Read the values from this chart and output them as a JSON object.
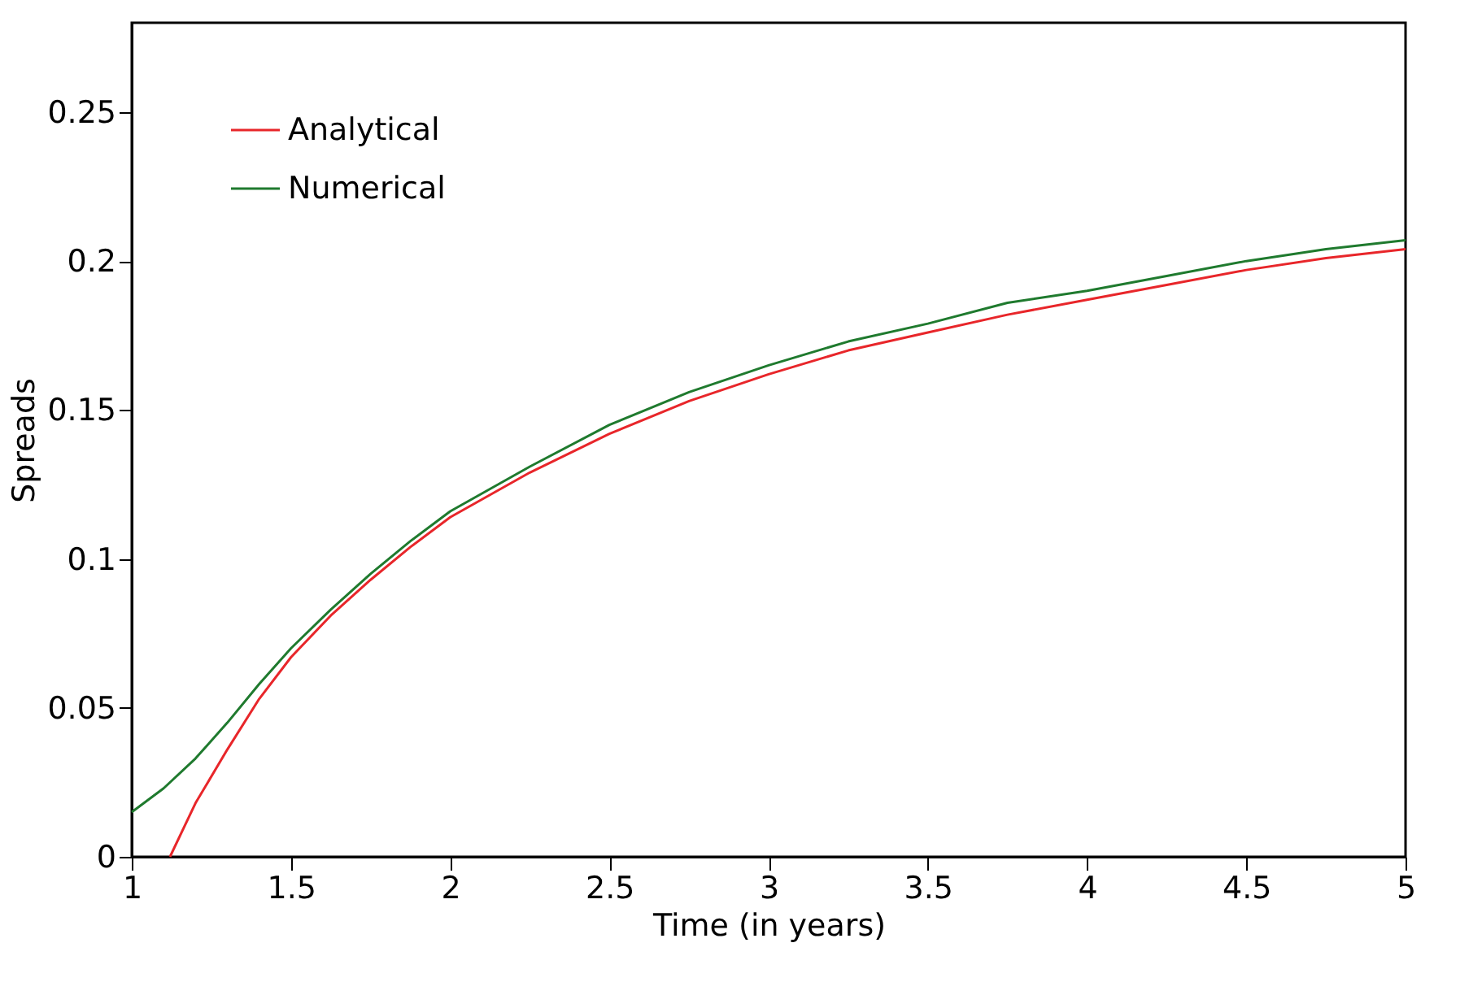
{
  "chart_data": {
    "type": "line",
    "xlabel": "Time (in years)",
    "ylabel": "Spreads",
    "xlim": [
      1,
      5
    ],
    "xticks": [
      1,
      1.5,
      2,
      2.5,
      3,
      3.5,
      4,
      4.5,
      5
    ],
    "ylim": [
      0,
      0.28
    ],
    "yticks": [
      0,
      0.05,
      0.1,
      0.15,
      0.2,
      0.25
    ],
    "grid": false,
    "legend": "top left",
    "marker": "none",
    "line_style": "solid",
    "series": [
      {
        "name": "Analytical",
        "color": "#e8262a",
        "x": [
          1.12,
          1.2,
          1.3,
          1.4,
          1.5,
          1.625,
          1.75,
          1.875,
          2,
          2.25,
          2.5,
          2.75,
          3,
          3.25,
          3.5,
          3.75,
          4,
          4.25,
          4.5,
          4.75,
          5
        ],
        "values": [
          0,
          0.018,
          0.036,
          0.053,
          0.067,
          0.081,
          0.093,
          0.104,
          0.114,
          0.129,
          0.142,
          0.153,
          0.162,
          0.17,
          0.176,
          0.182,
          0.187,
          0.192,
          0.197,
          0.201,
          0.204
        ]
      },
      {
        "name": "Numerical",
        "color": "#1f7a2e",
        "x": [
          1,
          1.1,
          1.2,
          1.3,
          1.4,
          1.5,
          1.625,
          1.75,
          1.875,
          2,
          2.25,
          2.5,
          2.75,
          3,
          3.25,
          3.5,
          3.75,
          4,
          4.25,
          4.5,
          4.75,
          5
        ],
        "values": [
          0.015,
          0.023,
          0.033,
          0.045,
          0.058,
          0.07,
          0.083,
          0.095,
          0.106,
          0.116,
          0.131,
          0.145,
          0.156,
          0.165,
          0.173,
          0.179,
          0.186,
          0.19,
          0.195,
          0.2,
          0.204,
          0.207
        ]
      }
    ]
  }
}
